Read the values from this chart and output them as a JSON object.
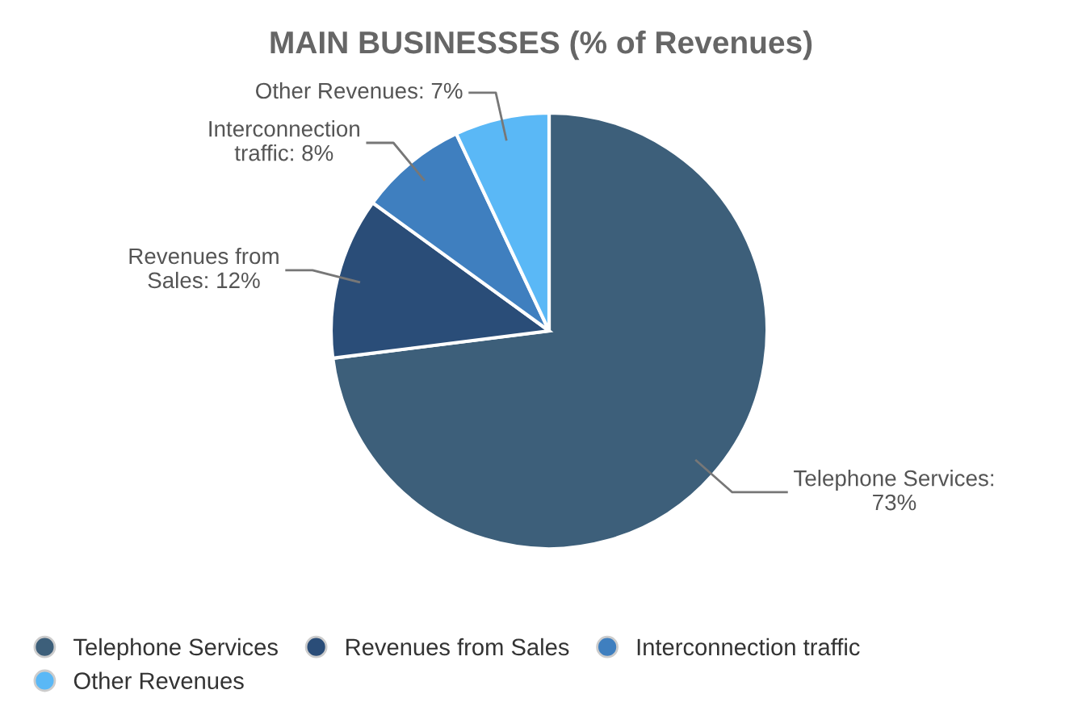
{
  "chart_data": {
    "type": "pie",
    "title": "MAIN BUSINESSES (% of Revenues)",
    "categories": [
      "Telephone Services",
      "Revenues from Sales",
      "Interconnection traffic",
      "Other Revenues"
    ],
    "values": [
      73,
      12,
      8,
      7
    ],
    "colors": [
      "#3d5f7a",
      "#2a4d78",
      "#3f7fbf",
      "#5ab8f6"
    ],
    "value_labels": [
      "Telephone Services:\n73%",
      "Revenues from\nSales: 12%",
      "Interconnection\ntraffic: 8%",
      "Other Revenues: 7%"
    ],
    "legend": "bottom"
  }
}
